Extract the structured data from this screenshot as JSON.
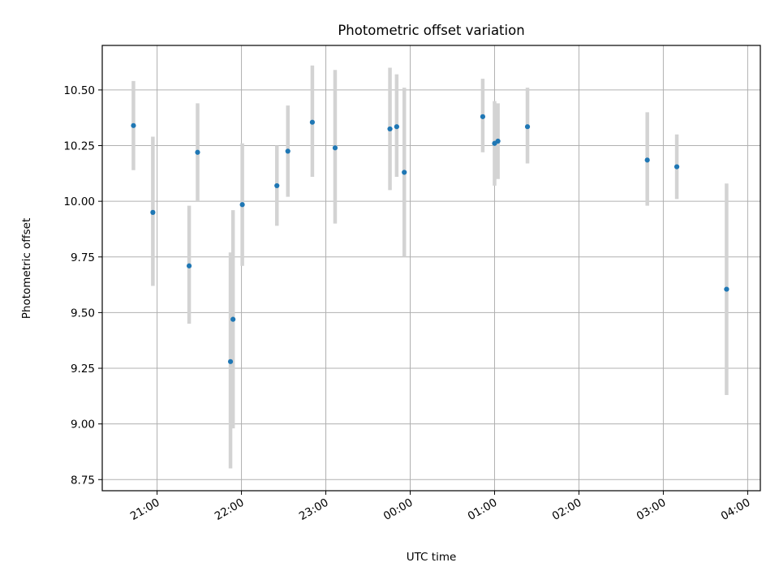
{
  "chart_data": {
    "type": "scatter",
    "title": "Photometric offset variation",
    "xlabel": "UTC time",
    "ylabel": "Photometric offset",
    "x_tick_labels": [
      "21:00",
      "22:00",
      "23:00",
      "00:00",
      "01:00",
      "02:00",
      "03:00",
      "04:00"
    ],
    "y_tick_labels": [
      "8.75",
      "9.00",
      "9.25",
      "9.50",
      "9.75",
      "10.00",
      "10.25",
      "10.50"
    ],
    "y_ticks": [
      8.75,
      9.0,
      9.25,
      9.5,
      9.75,
      10.0,
      10.25,
      10.5
    ],
    "xlim_hours": [
      20.35,
      28.15
    ],
    "ylim": [
      8.7,
      10.7
    ],
    "grid": true,
    "marker_color": "#1f77b4",
    "errorbar_color": "#d3d3d3",
    "series": [
      {
        "x_utc": [
          "20:43",
          "20:57",
          "21:23",
          "21:29",
          "21:52",
          "21:54",
          "22:01",
          "22:25",
          "22:33",
          "22:50",
          "23:06",
          "23:47",
          "23:52",
          "23:56",
          "00:51",
          "01:00",
          "01:03",
          "01:23",
          "02:51",
          "03:10",
          "03:45"
        ],
        "x_hours": [
          20.72,
          20.95,
          21.38,
          21.48,
          21.87,
          21.9,
          22.01,
          22.42,
          22.55,
          22.84,
          23.11,
          23.76,
          23.84,
          23.93,
          24.86,
          25.0,
          25.04,
          25.39,
          26.81,
          27.16,
          27.75
        ],
        "y": [
          10.34,
          9.95,
          9.71,
          10.22,
          9.28,
          9.47,
          9.985,
          10.07,
          10.225,
          10.355,
          10.24,
          10.325,
          10.335,
          10.13,
          10.38,
          10.26,
          10.27,
          10.335,
          10.185,
          10.155,
          9.605
        ],
        "y_low": [
          10.14,
          9.62,
          9.45,
          10.0,
          8.8,
          8.98,
          9.71,
          9.89,
          10.02,
          10.11,
          9.9,
          10.05,
          10.11,
          9.75,
          10.22,
          10.07,
          10.1,
          10.17,
          9.98,
          10.01,
          9.13
        ],
        "y_high": [
          10.54,
          10.29,
          9.98,
          10.44,
          9.77,
          9.96,
          10.26,
          10.25,
          10.43,
          10.61,
          10.59,
          10.6,
          10.57,
          10.51,
          10.55,
          10.45,
          10.44,
          10.51,
          10.4,
          10.3,
          10.08
        ]
      }
    ]
  }
}
